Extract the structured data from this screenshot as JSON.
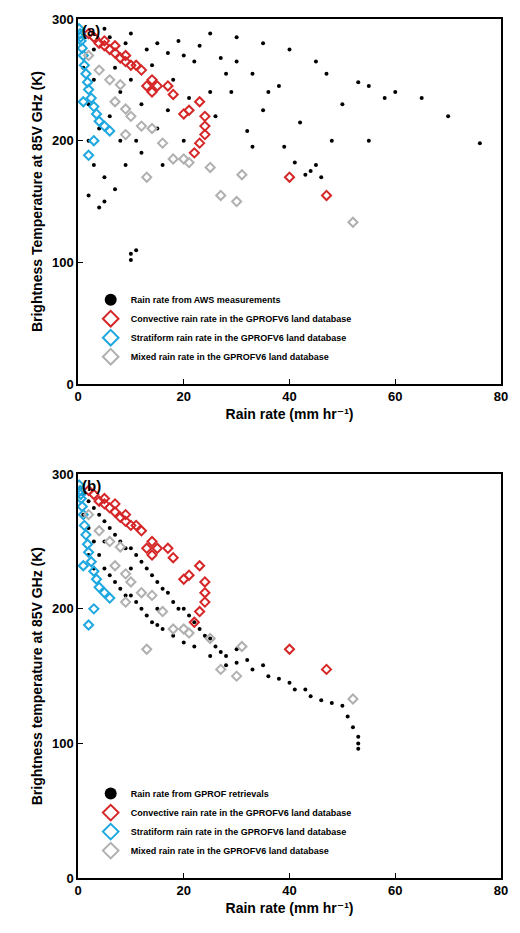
{
  "chart_data": [
    {
      "type": "scatter",
      "title": "(a)",
      "x_label": "Rain rate (mm hr⁻¹)",
      "y_label": "Brightness Temperature at 85V GHz (K)",
      "xlim": [
        0,
        80
      ],
      "xticks": [
        0,
        20,
        40,
        60,
        80
      ],
      "ylim": [
        0,
        300
      ],
      "yticks": [
        0,
        100,
        200,
        300
      ],
      "grid": false,
      "legend": "lower left",
      "series": [
        {
          "name": "Rain rate from AWS measurements",
          "color": "#000000",
          "marker": "circle",
          "x": [
            10,
            10,
            11,
            4,
            5,
            2,
            65,
            70,
            76,
            58,
            55,
            53,
            47,
            45,
            40,
            35,
            30,
            25,
            45,
            44,
            43,
            32,
            35,
            28,
            20,
            15,
            10,
            5,
            8,
            12,
            18,
            22,
            3,
            6,
            15,
            25,
            38,
            50,
            48,
            42,
            36,
            30,
            26,
            20,
            16,
            12,
            8,
            4,
            2,
            1,
            3,
            7,
            10,
            14,
            17,
            19,
            23,
            27,
            33,
            29,
            21,
            13,
            9,
            6,
            1,
            2,
            3,
            5,
            7,
            9,
            11,
            17,
            33,
            39,
            41,
            46,
            60,
            55
          ],
          "y": [
            107,
            102,
            110,
            145,
            150,
            155,
            235,
            220,
            198,
            235,
            245,
            248,
            255,
            265,
            275,
            280,
            285,
            288,
            180,
            175,
            172,
            208,
            225,
            255,
            270,
            280,
            288,
            292,
            240,
            230,
            250,
            265,
            250,
            220,
            210,
            240,
            245,
            230,
            200,
            215,
            240,
            265,
            220,
            200,
            180,
            190,
            200,
            210,
            230,
            260,
            275,
            260,
            250,
            262,
            272,
            282,
            278,
            268,
            255,
            240,
            235,
            275,
            280,
            285,
            285,
            200,
            180,
            170,
            160,
            180,
            200,
            225,
            195,
            195,
            182,
            170,
            240,
            200
          ]
        },
        {
          "name": "Convective rain rate in the GPROFV6 land database",
          "color": "#d62728",
          "marker": "diamond-open",
          "x": [
            2,
            3,
            4,
            5,
            6,
            7,
            8,
            9,
            10,
            12,
            5,
            7,
            9,
            11,
            14,
            15,
            20,
            21,
            23,
            24,
            24,
            24,
            23,
            22,
            40,
            47,
            18,
            17,
            14,
            13
          ],
          "y": [
            288,
            285,
            280,
            278,
            275,
            272,
            268,
            265,
            262,
            258,
            282,
            278,
            270,
            262,
            250,
            245,
            222,
            225,
            232,
            220,
            212,
            205,
            198,
            190,
            170,
            155,
            238,
            245,
            240,
            245
          ]
        },
        {
          "name": "Stratiform rain rate in the GPROFV6 land database",
          "color": "#1fa8e0",
          "marker": "diamond-open",
          "x": [
            0.2,
            0.4,
            0.6,
            0.8,
            1,
            1.2,
            1.5,
            1.8,
            2,
            2.5,
            3,
            3.5,
            4,
            5,
            6,
            2,
            3,
            1,
            0.5
          ],
          "y": [
            292,
            288,
            282,
            276,
            270,
            262,
            255,
            248,
            242,
            235,
            228,
            222,
            216,
            212,
            208,
            188,
            200,
            232,
            285
          ]
        },
        {
          "name": "Mixed rain rate in the GPROFV6 land database",
          "color": "#b0b0b0",
          "marker": "diamond-open",
          "x": [
            2,
            4,
            6,
            8,
            7,
            9,
            10,
            12,
            14,
            13,
            16,
            18,
            21,
            25,
            27,
            30,
            31,
            52,
            20,
            9
          ],
          "y": [
            270,
            258,
            250,
            246,
            232,
            226,
            220,
            212,
            210,
            170,
            198,
            185,
            182,
            178,
            155,
            150,
            172,
            133,
            185,
            205
          ]
        }
      ]
    },
    {
      "type": "scatter",
      "title": "(b)",
      "x_label": "Rain rate (mm hr⁻¹)",
      "y_label": "Brightness temperature at 85V GHz (K)",
      "xlim": [
        0,
        80
      ],
      "xticks": [
        0,
        20,
        40,
        60,
        80
      ],
      "ylim": [
        0,
        300
      ],
      "yticks": [
        0,
        100,
        200,
        300
      ],
      "grid": false,
      "legend": "lower left",
      "series": [
        {
          "name": "Rain rate from GPROF retrievals",
          "color": "#000000",
          "marker": "circle",
          "x": [
            0.5,
            1,
            1,
            2,
            2,
            3,
            3,
            4,
            4,
            5,
            5,
            6,
            6,
            7,
            7,
            8,
            8,
            9,
            9,
            10,
            10,
            11,
            11,
            12,
            12,
            13,
            13,
            14,
            14,
            15,
            15,
            16,
            16,
            17,
            18,
            18,
            19,
            20,
            20,
            21,
            22,
            22,
            23,
            24,
            25,
            25,
            26,
            27,
            28,
            28,
            30,
            30,
            32,
            33,
            35,
            36,
            38,
            40,
            41,
            43,
            44,
            46,
            48,
            50,
            51,
            52,
            53,
            53,
            53,
            10,
            5,
            15,
            3,
            2
          ],
          "y": [
            290,
            285,
            270,
            280,
            260,
            275,
            250,
            270,
            240,
            265,
            230,
            260,
            225,
            255,
            220,
            250,
            215,
            245,
            210,
            245,
            210,
            240,
            205,
            235,
            200,
            230,
            195,
            225,
            190,
            220,
            188,
            215,
            185,
            212,
            205,
            180,
            200,
            200,
            175,
            195,
            190,
            172,
            185,
            180,
            178,
            165,
            172,
            168,
            165,
            158,
            170,
            160,
            162,
            155,
            158,
            150,
            148,
            145,
            140,
            140,
            135,
            132,
            130,
            128,
            120,
            112,
            105,
            100,
            96,
            230,
            250,
            200,
            230,
            240
          ]
        },
        {
          "name": "Convective rain rate in the GPROFV6 land database",
          "color": "#d62728",
          "marker": "diamond-open",
          "x": [
            2,
            3,
            4,
            5,
            6,
            7,
            8,
            9,
            10,
            12,
            5,
            7,
            9,
            11,
            14,
            15,
            20,
            21,
            23,
            24,
            24,
            24,
            23,
            22,
            40,
            47,
            18,
            17,
            14,
            13
          ],
          "y": [
            288,
            285,
            280,
            278,
            275,
            272,
            268,
            265,
            262,
            258,
            282,
            278,
            270,
            262,
            250,
            245,
            222,
            225,
            232,
            220,
            212,
            205,
            198,
            190,
            170,
            155,
            238,
            245,
            240,
            245
          ]
        },
        {
          "name": "Stratiform rain rate in the GPROFV6 land database",
          "color": "#1fa8e0",
          "marker": "diamond-open",
          "x": [
            0.2,
            0.4,
            0.6,
            0.8,
            1,
            1.2,
            1.5,
            1.8,
            2,
            2.5,
            3,
            3.5,
            4,
            5,
            6,
            2,
            3,
            1,
            0.5
          ],
          "y": [
            292,
            288,
            282,
            276,
            270,
            262,
            255,
            248,
            242,
            235,
            228,
            222,
            216,
            212,
            208,
            188,
            200,
            232,
            285
          ]
        },
        {
          "name": "Mixed rain rate in the GPROFV6 land database",
          "color": "#b0b0b0",
          "marker": "diamond-open",
          "x": [
            2,
            4,
            6,
            8,
            7,
            9,
            10,
            12,
            14,
            13,
            16,
            18,
            21,
            25,
            27,
            30,
            31,
            52,
            20,
            9
          ],
          "y": [
            270,
            258,
            250,
            246,
            232,
            226,
            220,
            212,
            210,
            170,
            198,
            185,
            182,
            178,
            155,
            150,
            172,
            133,
            185,
            205
          ]
        }
      ]
    }
  ]
}
